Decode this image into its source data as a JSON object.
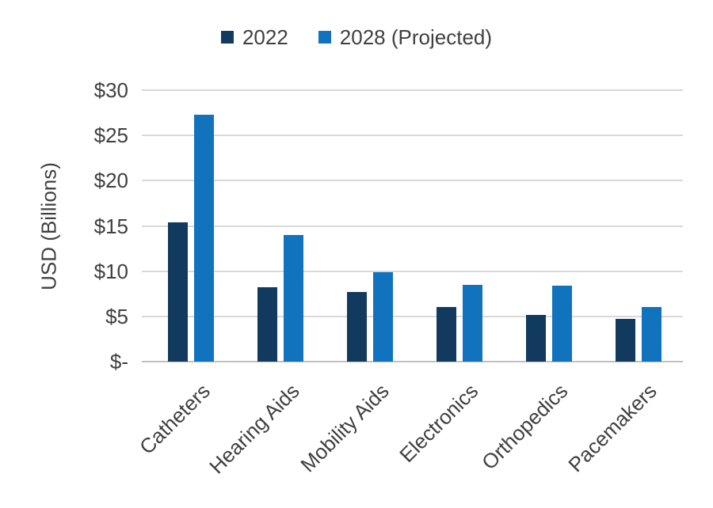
{
  "chart_data": {
    "type": "bar",
    "title": "",
    "categories": [
      "Catheters",
      "Hearing Aids",
      "Mobility Aids",
      "Electronics",
      "Orthopedics",
      "Pacemakers"
    ],
    "series": [
      {
        "name": "2022",
        "color": "#123A5E",
        "values": [
          15.4,
          8.2,
          7.7,
          6.0,
          5.2,
          4.7
        ]
      },
      {
        "name": "2028 (Projected)",
        "color": "#1173BD",
        "values": [
          27.3,
          14.0,
          9.9,
          8.5,
          8.4,
          6.0
        ]
      }
    ],
    "xlabel": "",
    "ylabel": "USD (Billions)",
    "ylim": [
      0,
      30
    ],
    "yticks": [
      {
        "value": 0,
        "label": "$-"
      },
      {
        "value": 5,
        "label": "$5"
      },
      {
        "value": 10,
        "label": "$10"
      },
      {
        "value": 15,
        "label": "$15"
      },
      {
        "value": 20,
        "label": "$20"
      },
      {
        "value": 25,
        "label": "$25"
      },
      {
        "value": 30,
        "label": "$30"
      }
    ],
    "grid": true,
    "legend_position": "top",
    "text_color": "#404040",
    "gridline_color": "#D9D9D9",
    "axis_line_color": "#C0C0C0"
  }
}
